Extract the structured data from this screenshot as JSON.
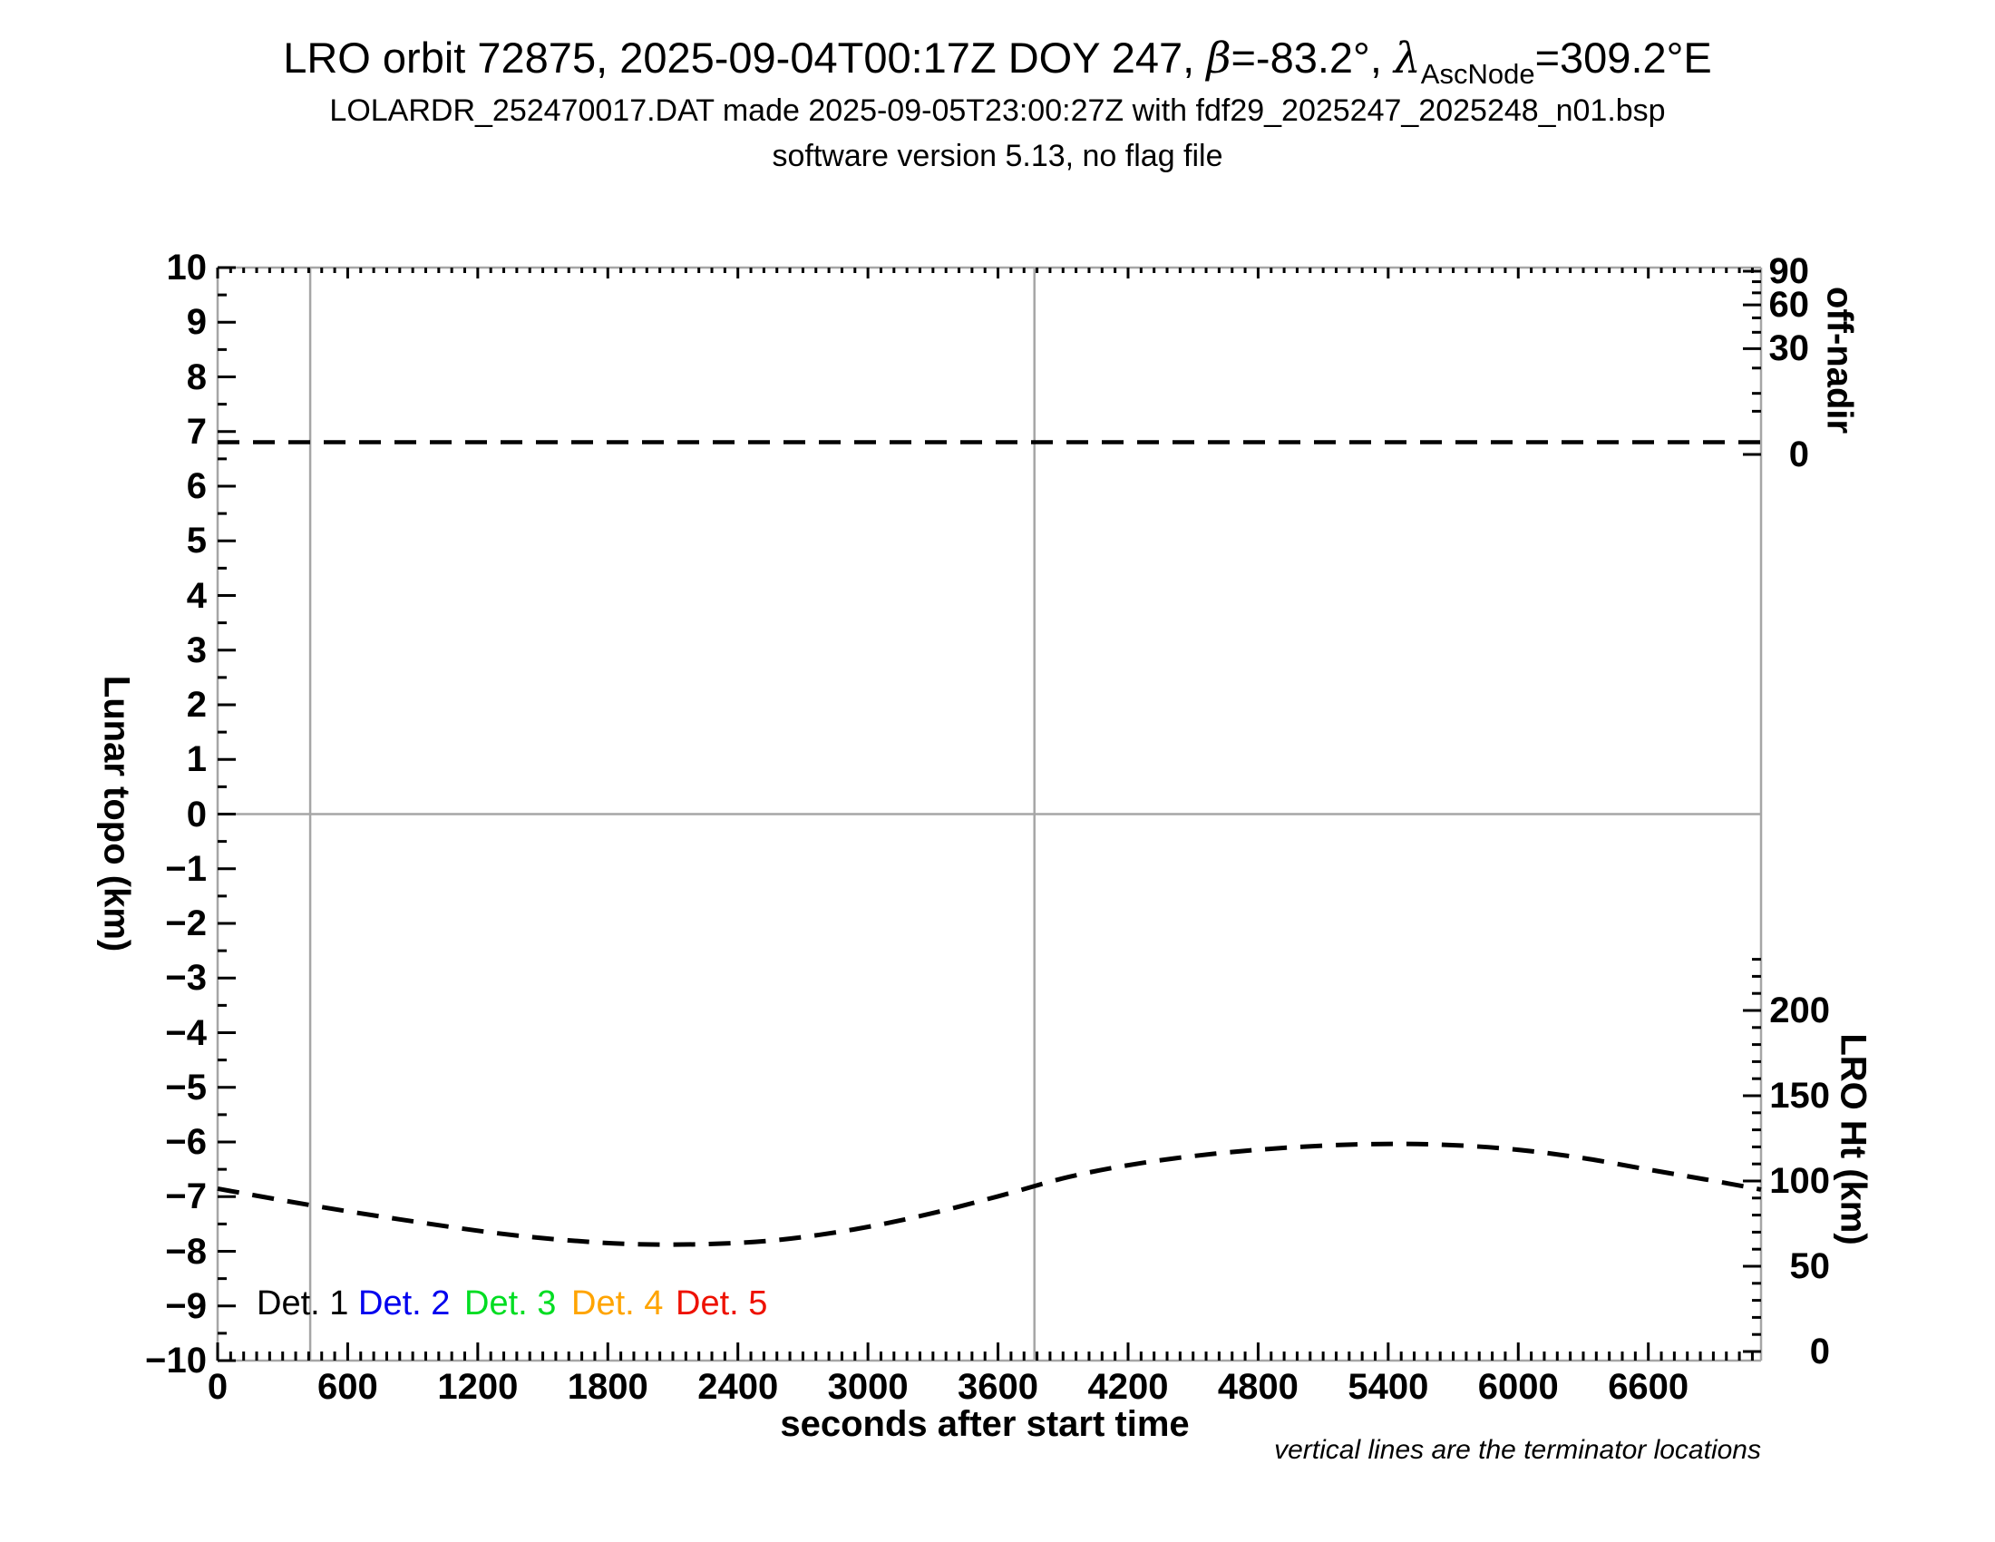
{
  "header": {
    "title_pre": "LRO orbit 72875, 2025-09-04T00:17Z DOY 247, ",
    "beta": "β",
    "title_mid": "=-83.2°, ",
    "lambda": "λ",
    "title_sub": "AscNode",
    "title_post": "=309.2°E",
    "line2": "LOLARDR_252470017.DAT made 2025-09-05T23:00:27Z with fdf29_2025247_2025248_n01.bsp",
    "line3": "software version 5.13, no flag file"
  },
  "footnote": "vertical lines are the terminator locations",
  "legend": [
    {
      "label": "Det. 1",
      "color": "#000000"
    },
    {
      "label": "Det. 2",
      "color": "#0000ee"
    },
    {
      "label": "Det. 3",
      "color": "#00dd22"
    },
    {
      "label": "Det. 4",
      "color": "#ffa400"
    },
    {
      "label": "Det. 5",
      "color": "#ee1100"
    }
  ],
  "colors": {
    "frame_gray": "#a6a6a6",
    "tick_black": "#000000",
    "curve_black": "#000000"
  },
  "chart_data": {
    "type": "line",
    "xlabel": "seconds after start time",
    "ylabel_left": "Lunar topo (km)",
    "ylabel_right_top": "off-nadir",
    "ylabel_right_bottom": "LRO Ht (km)",
    "grid": "off",
    "axes": {
      "x": {
        "min": 0,
        "max": 7120,
        "major_step": 600,
        "minor_step": 60,
        "tick_values": [
          0,
          600,
          1200,
          1800,
          2400,
          3000,
          3600,
          4200,
          4800,
          5400,
          6000,
          6600
        ],
        "tick_labels": [
          "0",
          "600",
          "1200",
          "1800",
          "2400",
          "3000",
          "3600",
          "4200",
          "4800",
          "5400",
          "6000",
          "6600"
        ]
      },
      "left": {
        "min": -10,
        "max": 10,
        "major_step": 1,
        "minor_step": 0.5,
        "tick_values": [
          10,
          9,
          8,
          7,
          6,
          5,
          4,
          3,
          2,
          1,
          0,
          -1,
          -2,
          -3,
          -4,
          -5,
          -6,
          -7,
          -8,
          -9,
          -10
        ],
        "tick_labels": [
          "10",
          "9",
          "8",
          "7",
          "6",
          "5",
          "4",
          "3",
          "2",
          "1",
          "0",
          "−1",
          "−2",
          "−3",
          "−4",
          "−5",
          "−6",
          "−7",
          "−8",
          "−9",
          "−10"
        ]
      },
      "right_off_nadir": {
        "scale": "sqrt_degrees",
        "major_tick_values": [
          90,
          60,
          30,
          0
        ],
        "major_tick_labels": [
          "90",
          "60",
          "30",
          "0"
        ],
        "minor_tick_values": [
          80,
          70,
          50,
          40,
          20,
          10,
          5
        ]
      },
      "right_lro_ht": {
        "scale": "linear_km",
        "major_tick_values": [
          200,
          150,
          100,
          50,
          0
        ],
        "major_tick_labels": [
          "200",
          "150",
          "100",
          "50",
          "0"
        ],
        "minor_step": 10,
        "minor_max": 230
      }
    },
    "terminator_lines_s": [
      427,
      3768
    ],
    "zero_reference_line": 0,
    "series": [
      {
        "name": "off-nadir angle",
        "axis": "right_off_nadir",
        "style": "dashed",
        "units": "deg",
        "x": [
          0,
          7120
        ],
        "y": [
          0.4,
          0.4
        ]
      },
      {
        "name": "LRO height",
        "axis": "right_lro_ht",
        "style": "dashed",
        "units": "km",
        "x": [
          0,
          420,
          840,
          1250,
          1590,
          1920,
          2260,
          2590,
          2930,
          3260,
          3600,
          3930,
          4260,
          4600,
          4930,
          5270,
          5600,
          5940,
          6270,
          6610,
          6860,
          7120
        ],
        "y": [
          95.5,
          86,
          77.5,
          70,
          65.5,
          63,
          63,
          65.5,
          71.5,
          80,
          91,
          102.5,
          110.5,
          116,
          119.5,
          121.5,
          121.5,
          119,
          114,
          106.5,
          101,
          95
        ]
      }
    ]
  }
}
